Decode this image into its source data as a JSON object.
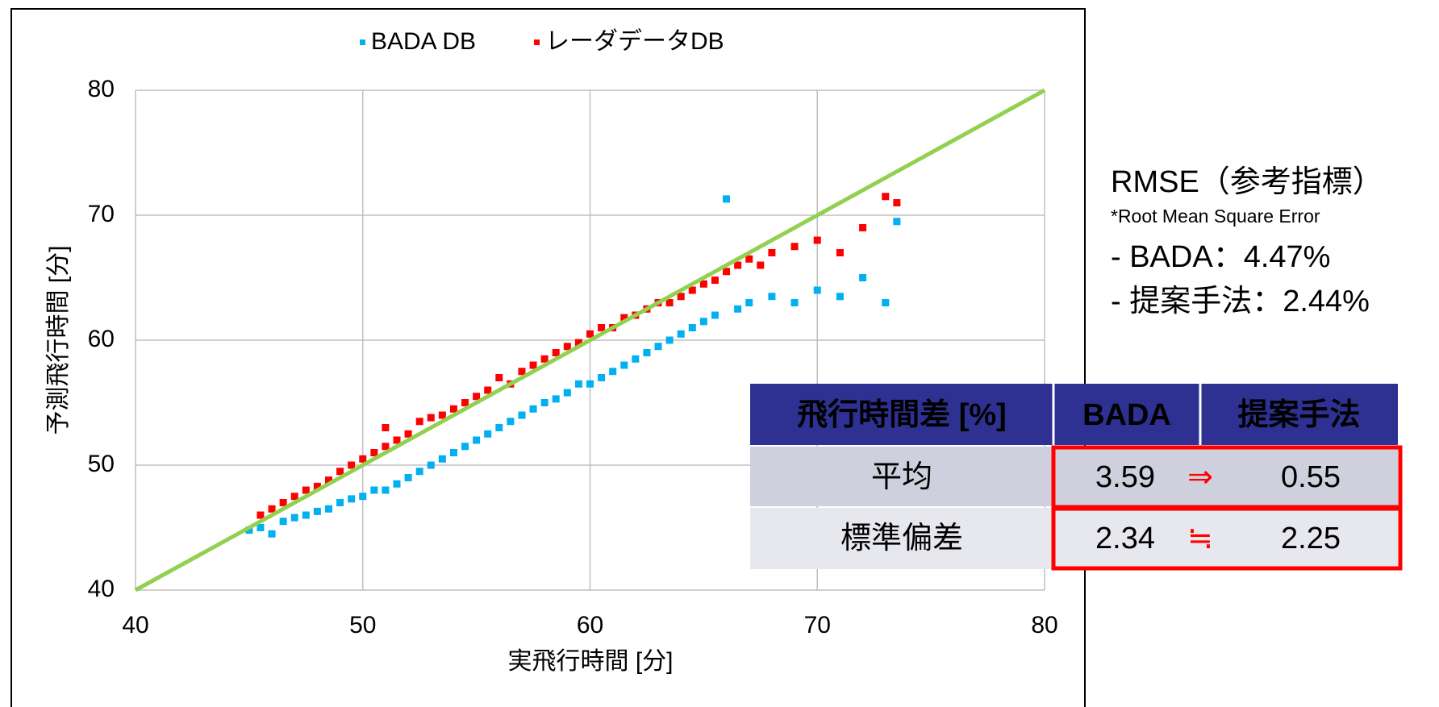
{
  "chart_data": {
    "type": "scatter",
    "x_label": "実飛行時間 [分]",
    "y_label": "予測飛行時間 [分]",
    "xlim": [
      40,
      80
    ],
    "ylim": [
      40,
      80
    ],
    "xticks": [
      40,
      50,
      60,
      70,
      80
    ],
    "yticks": [
      40,
      50,
      60,
      70,
      80
    ],
    "grid": true,
    "legend": "top",
    "series": [
      {
        "name": "BADA DB",
        "color": "#00b0f0",
        "x": [
          45,
          45.5,
          46,
          46.5,
          47,
          47.5,
          48,
          48.5,
          49,
          49.5,
          50,
          50.5,
          51,
          51.5,
          52,
          52.5,
          53,
          53.5,
          54,
          54.5,
          55,
          55.5,
          56,
          56.5,
          57,
          57.5,
          58,
          58.5,
          59,
          59.5,
          60,
          60.5,
          61,
          61.5,
          62,
          62.5,
          63,
          63.5,
          64,
          64.5,
          65,
          65.5,
          66,
          66.5,
          67,
          68,
          69,
          70,
          71,
          72,
          73,
          73.5
        ],
        "values": [
          44.8,
          45,
          44.5,
          45.5,
          45.8,
          46,
          46.3,
          46.5,
          47,
          47.3,
          47.5,
          48,
          48,
          48.5,
          49,
          49.5,
          50,
          50.5,
          51,
          51.5,
          52,
          52.5,
          53,
          53.5,
          54,
          54.5,
          55,
          55.3,
          55.8,
          56.5,
          56.5,
          57,
          57.5,
          58,
          58.5,
          59,
          59.5,
          60,
          60.5,
          61,
          61.5,
          62,
          71.3,
          62.5,
          63,
          63.5,
          63,
          64,
          63.5,
          65,
          63,
          69.5
        ]
      },
      {
        "name": "レーダデータDB",
        "color": "#ff0000",
        "x": [
          45.5,
          46,
          46.5,
          47,
          47.5,
          48,
          48.5,
          49,
          49.5,
          50,
          50.5,
          51,
          51,
          51.5,
          52,
          52.5,
          53,
          53.5,
          54,
          54.5,
          55,
          55.5,
          56,
          56.5,
          57,
          57.5,
          58,
          58.5,
          59,
          59.5,
          60,
          60.5,
          61,
          61.5,
          62,
          62.5,
          63,
          63.5,
          64,
          64.5,
          65,
          65.5,
          66,
          66.5,
          67,
          67.5,
          68,
          69,
          70,
          71,
          72,
          73,
          73.5
        ],
        "values": [
          46,
          46.5,
          47,
          47.5,
          48,
          48.3,
          48.8,
          49.5,
          50,
          50.5,
          51,
          51.5,
          53,
          52,
          52.5,
          53.5,
          53.8,
          54,
          54.5,
          55,
          55.5,
          56,
          57,
          56.5,
          57.5,
          58,
          58.5,
          59,
          59.5,
          59.8,
          60.5,
          61,
          61,
          61.8,
          62,
          62.5,
          63,
          63,
          63.5,
          64,
          64.5,
          64.8,
          65.5,
          66,
          66.5,
          66,
          67,
          67.5,
          68,
          67,
          69,
          71.5,
          71
        ]
      }
    ],
    "reference_line": {
      "color": "#92d050",
      "x": [
        40,
        80
      ],
      "values": [
        40,
        80
      ]
    }
  },
  "rmse": {
    "title": "RMSE（参考指標）",
    "note": "*Root Mean Square Error",
    "items": [
      "- BADA：4.47%",
      "- 提案手法：2.44%"
    ]
  },
  "table": {
    "header": [
      "飛行時間差 [%]",
      "BADA",
      "提案手法"
    ],
    "rows": [
      [
        "平均",
        "3.59",
        "⇒",
        "0.55"
      ],
      [
        "標準偏差",
        "2.34",
        "≒",
        "2.25"
      ]
    ]
  }
}
